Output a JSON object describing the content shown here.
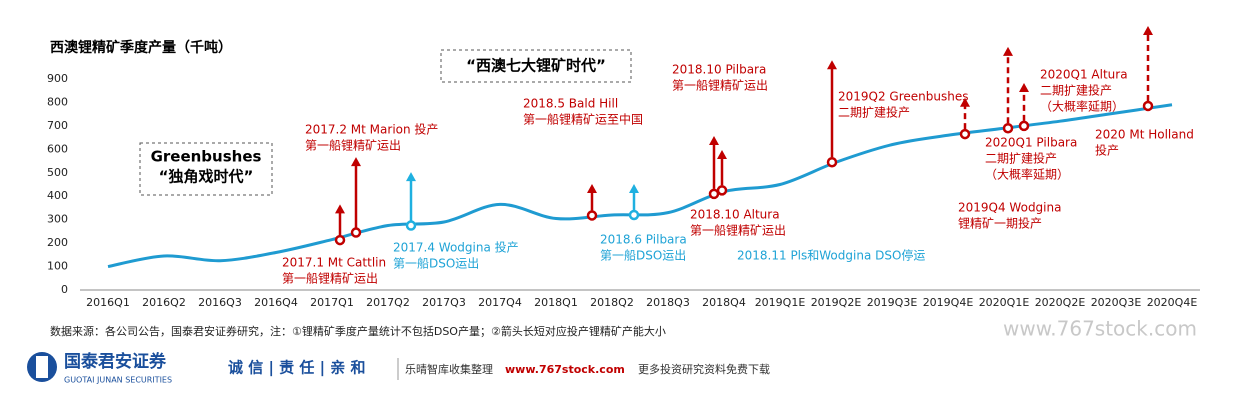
{
  "chart_data": {
    "type": "line",
    "title": "西澳锂精矿季度产量（千吨）",
    "categories": [
      "2016Q1",
      "2016Q2",
      "2016Q3",
      "2016Q4",
      "2017Q1",
      "2017Q2",
      "2017Q3",
      "2017Q4",
      "2018Q1",
      "2018Q2",
      "2018Q3",
      "2018Q4",
      "2019Q1E",
      "2019Q2E",
      "2019Q3E",
      "2019Q4E",
      "2020Q1E",
      "2020Q2E",
      "2020Q3E",
      "2020Q4E"
    ],
    "series": [
      {
        "color": "#1f9bd1",
        "values": [
          100,
          145,
          125,
          160,
          215,
          275,
          290,
          365,
          305,
          320,
          330,
          420,
          450,
          545,
          620,
          660,
          690,
          720,
          755,
          790
        ]
      }
    ],
    "ylim": [
      0,
      900
    ],
    "yticks": [
      0,
      100,
      200,
      300,
      400,
      500,
      600,
      700,
      800,
      900
    ],
    "grid": false,
    "markers": [
      {
        "value": 213,
        "target": 365,
        "color": "#c00000",
        "dashed": false
      },
      {
        "value": 245,
        "target": 567,
        "color": "#c00000",
        "dashed": false
      },
      {
        "value": 275,
        "target": 503,
        "color": "#1fb0e0",
        "dashed": false
      },
      {
        "value": 318,
        "target": 452,
        "color": "#c00000",
        "dashed": false
      },
      {
        "value": 320,
        "target": 452,
        "color": "#1fb0e0",
        "dashed": false
      },
      {
        "value": 410,
        "target": 657,
        "color": "#c00000",
        "dashed": false
      },
      {
        "value": 425,
        "target": 597,
        "color": "#c00000",
        "dashed": false
      },
      {
        "value": 545,
        "target": 980,
        "color": "#c00000",
        "dashed": false
      },
      {
        "value": 665,
        "target": 820,
        "color": "#c00000",
        "dashed": true
      },
      {
        "value": 690,
        "target": 1037,
        "color": "#c00000",
        "dashed": true
      },
      {
        "value": 700,
        "target": 883,
        "color": "#c00000",
        "dashed": true
      },
      {
        "value": 785,
        "target": 1126,
        "color": "#c00000",
        "dashed": true
      }
    ],
    "annotations": [
      {
        "color": "#c00000",
        "lines": [
          "2017.2 Mt Marion 投产",
          "第一船锂精矿运出"
        ]
      },
      {
        "color": "#c00000",
        "lines": [
          "2017.1 Mt Cattlin",
          "第一船锂精矿运出"
        ]
      },
      {
        "color": "#1fa3d6",
        "lines": [
          "2017.4 Wodgina 投产",
          "第一船DSO运出"
        ]
      },
      {
        "color": "#c00000",
        "lines": [
          "2018.5 Bald Hill",
          "第一船锂精矿运至中国"
        ]
      },
      {
        "color": "#1fa3d6",
        "lines": [
          "2018.6 Pilbara",
          "第一船DSO运出"
        ]
      },
      {
        "color": "#c00000",
        "lines": [
          "2018.10 Pilbara",
          "第一船锂精矿运出"
        ]
      },
      {
        "color": "#c00000",
        "lines": [
          "2018.10 Altura",
          "第一船锂精矿运出"
        ]
      },
      {
        "color": "#1fa3d6",
        "lines": [
          "2018.11 Pls和Wodgina DSO停运"
        ]
      },
      {
        "color": "#c00000",
        "lines": [
          "2019Q2 Greenbushes",
          "二期扩建投产"
        ]
      },
      {
        "color": "#c00000",
        "lines": [
          "2020Q1 Altura",
          "二期扩建投产",
          "（大概率延期）"
        ]
      },
      {
        "color": "#c00000",
        "lines": [
          "2020Q1 Pilbara",
          "二期扩建投产",
          "（大概率延期）"
        ]
      },
      {
        "color": "#c00000",
        "lines": [
          "2020 Mt Holland",
          "投产"
        ]
      },
      {
        "color": "#c00000",
        "lines": [
          "2019Q4 Wodgina",
          "锂精矿一期投产"
        ]
      }
    ],
    "boxes": [
      {
        "lines": [
          "“西澳七大锂矿时代”"
        ]
      },
      {
        "lines": [
          "Greenbushes",
          "“独角戏时代”"
        ]
      }
    ]
  },
  "footer": {
    "source": "数据来源：各公司公告，国泰君安证券研究，注：①锂精矿季度产量统计不包括DSO产量；②箭头长短对应投产锂精矿产能大小",
    "brand": "国泰君安证券",
    "brand_en": "GUOTAI JUNAN SECURITIES",
    "motto": "诚 信 | 责 任 | 亲 和",
    "collector": "乐晴智库收集整理",
    "site": "www.767stock.com",
    "slogan": "更多投资研究资料免费下载",
    "watermark": "www.767stock.com"
  }
}
